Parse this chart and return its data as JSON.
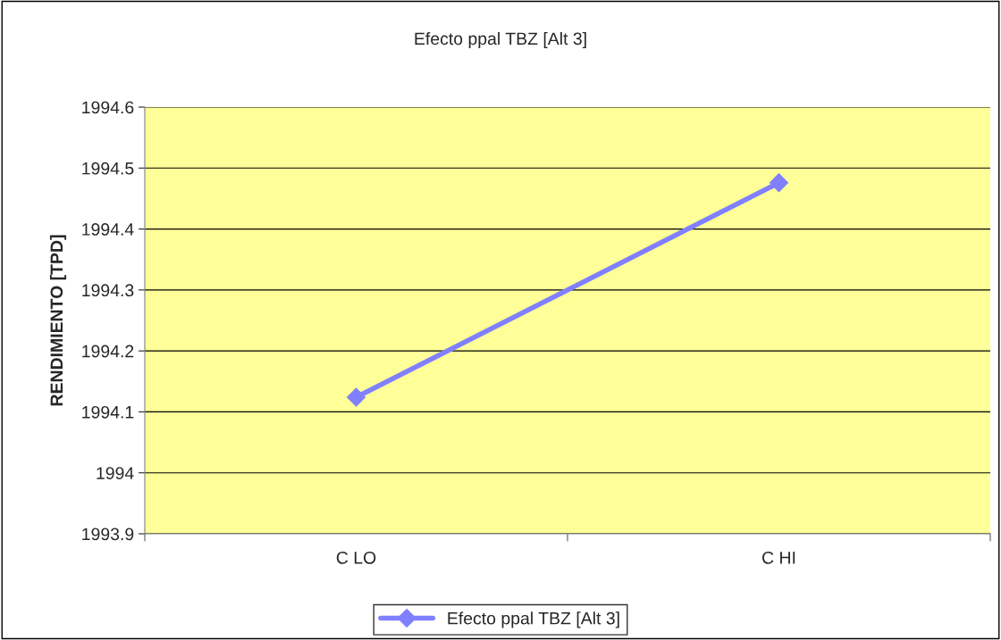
{
  "chart_data": {
    "type": "line",
    "title": "Efecto ppal TBZ [Alt 3]",
    "ylabel": "RENDIMIENTO [TPD]",
    "categories": [
      "C LO",
      "C HI"
    ],
    "series": [
      {
        "name": "Efecto ppal TBZ [Alt 3]",
        "color": "#8080ff",
        "values": [
          1994.124,
          1994.476
        ]
      }
    ],
    "ylim": [
      1993.9,
      1994.6
    ],
    "yticks": [
      {
        "value": 1993.9,
        "label": "1993.9"
      },
      {
        "value": 1994.0,
        "label": "1994"
      },
      {
        "value": 1994.1,
        "label": "1994.1"
      },
      {
        "value": 1994.2,
        "label": "1994.2"
      },
      {
        "value": 1994.3,
        "label": "1994.3"
      },
      {
        "value": 1994.4,
        "label": "1994.4"
      },
      {
        "value": 1994.5,
        "label": "1994.5"
      },
      {
        "value": 1994.6,
        "label": "1994.6"
      }
    ],
    "grid": "y",
    "legend": "bottom",
    "marker": "diamond",
    "line_style": "solid"
  }
}
